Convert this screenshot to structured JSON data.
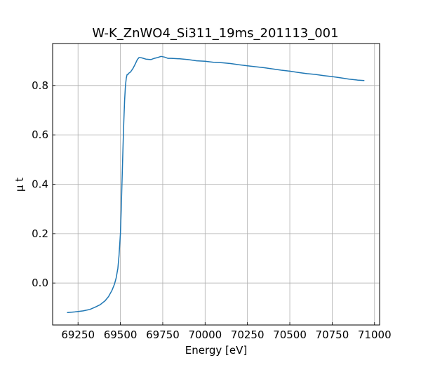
{
  "chart_data": {
    "type": "line",
    "title": "W-K_ZnWO4_Si311_19ms_201113_001",
    "xlabel": "Energy [eV]",
    "ylabel": "μ t",
    "xlim": [
      69100,
      71030
    ],
    "ylim": [
      -0.17,
      0.97
    ],
    "grid": true,
    "xticks": [
      69250,
      69500,
      69750,
      70000,
      70250,
      70500,
      70750,
      71000
    ],
    "yticks": [
      0.0,
      0.2,
      0.4,
      0.6,
      0.8
    ],
    "xtick_labels": [
      "69250",
      "69500",
      "69750",
      "70000",
      "70250",
      "70500",
      "70750",
      "71000"
    ],
    "ytick_labels": [
      "0.0",
      "0.2",
      "0.4",
      "0.6",
      "0.8"
    ],
    "series": [
      {
        "color": "#1f77b4",
        "x": [
          69185,
          69230,
          69280,
          69320,
          69350,
          69380,
          69410,
          69430,
          69450,
          69465,
          69475,
          69485,
          69492,
          69500,
          69505,
          69510,
          69515,
          69520,
          69525,
          69530,
          69535,
          69540,
          69545,
          69550,
          69560,
          69575,
          69590,
          69600,
          69610,
          69625,
          69650,
          69680,
          69700,
          69720,
          69740,
          69760,
          69780,
          69800,
          69850,
          69900,
          69950,
          70000,
          70050,
          70100,
          70150,
          70200,
          70250,
          70300,
          70350,
          70400,
          70450,
          70500,
          70550,
          70600,
          70650,
          70700,
          70750,
          70800,
          70850,
          70900,
          70940
        ],
        "y": [
          -0.12,
          -0.117,
          -0.113,
          -0.107,
          -0.098,
          -0.088,
          -0.072,
          -0.055,
          -0.03,
          -0.005,
          0.02,
          0.06,
          0.11,
          0.2,
          0.3,
          0.42,
          0.54,
          0.65,
          0.74,
          0.8,
          0.83,
          0.845,
          0.845,
          0.85,
          0.855,
          0.87,
          0.89,
          0.905,
          0.913,
          0.912,
          0.907,
          0.905,
          0.91,
          0.913,
          0.918,
          0.915,
          0.91,
          0.91,
          0.908,
          0.905,
          0.9,
          0.898,
          0.894,
          0.892,
          0.889,
          0.884,
          0.88,
          0.876,
          0.872,
          0.867,
          0.862,
          0.858,
          0.853,
          0.848,
          0.845,
          0.84,
          0.836,
          0.831,
          0.826,
          0.822,
          0.82
        ]
      }
    ]
  }
}
